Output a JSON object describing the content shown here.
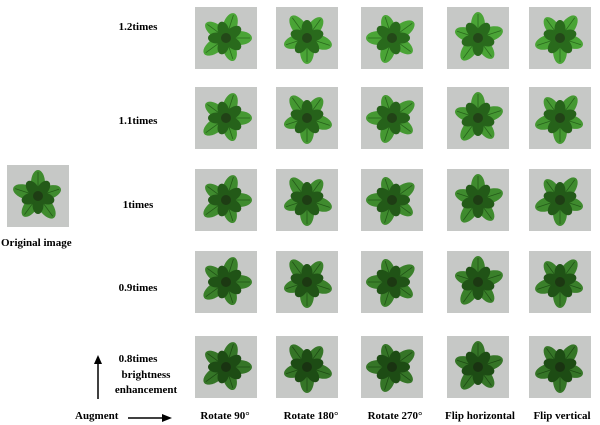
{
  "original": {
    "label": "Original image"
  },
  "rows": [
    {
      "label": "1.2times"
    },
    {
      "label": "1.1times"
    },
    {
      "label": "1times"
    },
    {
      "label": "0.9times"
    },
    {
      "label": "0.8times"
    }
  ],
  "axis": {
    "brightness_label": "brightness",
    "enhancement_label": "enhancement",
    "augment_label": "Augment"
  },
  "columns": [
    {
      "label": "Rotate 90°"
    },
    {
      "label": "Rotate 180°"
    },
    {
      "label": "Rotate 270°"
    },
    {
      "label": "Flip horizontal"
    },
    {
      "label": "Flip vertical"
    }
  ],
  "colors": {
    "background": "#c6c8c6",
    "leaf": "#3f8b2e",
    "leaf_dark": "#235a18",
    "center": "#1e3d14"
  }
}
